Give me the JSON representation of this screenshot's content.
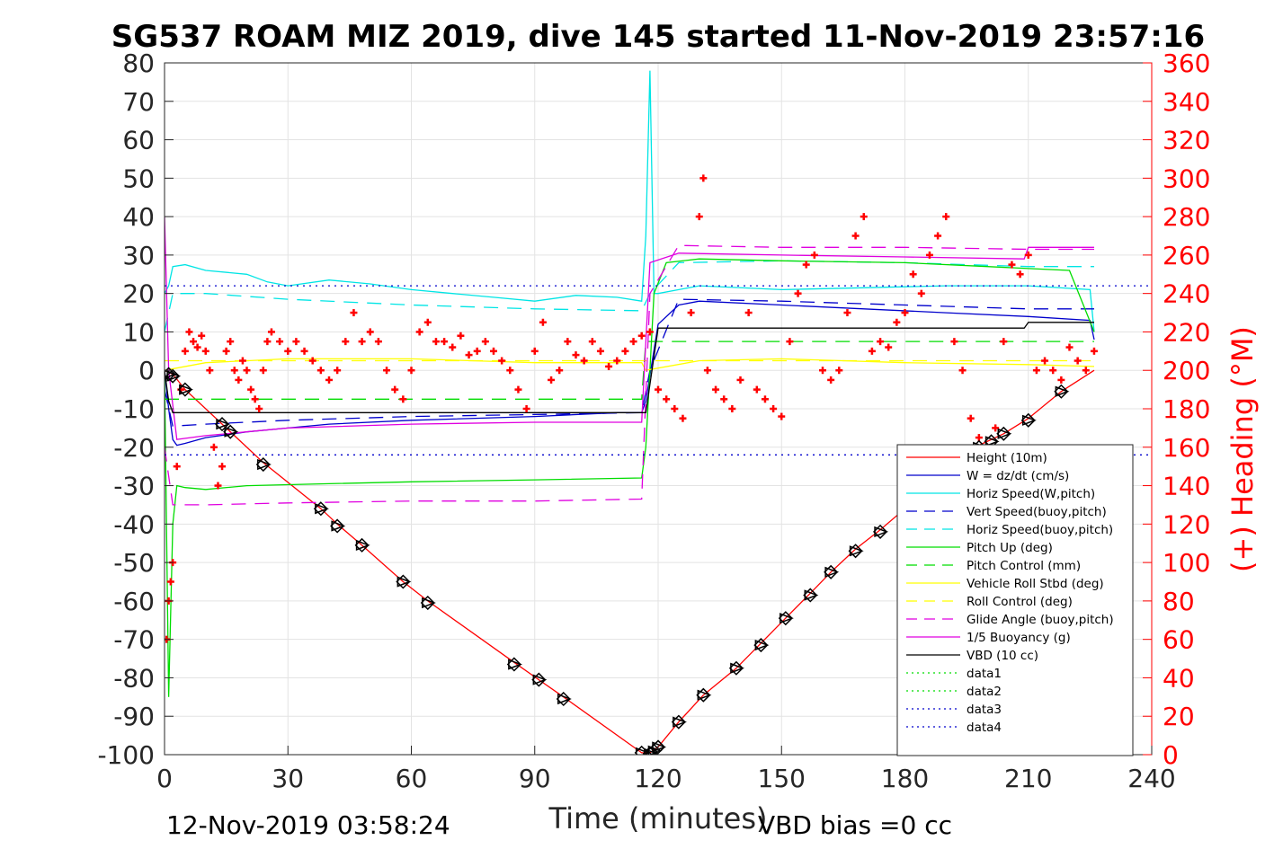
{
  "chart_data": {
    "type": "line",
    "title": "SG537 ROAM MIZ 2019, dive 145 started 11-Nov-2019 23:57:16",
    "xlabel": "Time (minutes)",
    "ylabel": "",
    "ylabel_right": "(+) Heading (°M)",
    "footer_left": "12-Nov-2019 03:58:24",
    "footer_right": "VBD bias =0 cc",
    "xlim": [
      0,
      240
    ],
    "ylim": [
      -100,
      80
    ],
    "ylim_right": [
      0,
      360
    ],
    "x_ticks": [
      "0",
      "30",
      "60",
      "90",
      "120",
      "150",
      "180",
      "210",
      "240"
    ],
    "y_ticks": [
      "80",
      "70",
      "60",
      "50",
      "40",
      "30",
      "20",
      "10",
      "0",
      "-10",
      "-20",
      "-30",
      "-40",
      "-50",
      "-60",
      "-70",
      "-80",
      "-90",
      "-100"
    ],
    "y_ticks_right": [
      "360",
      "340",
      "320",
      "300",
      "280",
      "260",
      "240",
      "220",
      "200",
      "180",
      "160",
      "140",
      "120",
      "100",
      "80",
      "60",
      "40",
      "20",
      "0"
    ],
    "grid": true,
    "legend_position": "lower-right",
    "colors": {
      "red": "#ff0000",
      "blue": "#0000cc",
      "cyan": "#00e5e5",
      "green": "#00dd00",
      "yellow": "#ffff00",
      "magenta": "#e000e0",
      "black": "#000000",
      "heading": "#ff0000"
    },
    "series": [
      {
        "name": "Height (10m)",
        "color": "#ff0000",
        "style": "solid",
        "x": [
          0,
          1,
          2,
          5,
          14,
          24,
          38,
          42,
          48,
          58,
          64,
          85,
          91,
          97,
          116,
          118,
          120,
          125,
          131,
          139,
          145,
          151,
          157,
          162,
          168,
          174,
          180,
          186,
          192,
          198,
          204,
          210,
          218,
          226
        ],
        "y": [
          0,
          -0.5,
          -1,
          -5,
          -14,
          -24,
          -36,
          -40,
          -45.5,
          -55,
          -60,
          -76,
          -80.5,
          -85,
          -99.5,
          -99.5,
          -98,
          -91.5,
          -84.5,
          -77.5,
          -71,
          -64.5,
          -58,
          -52.5,
          -46.5,
          -41.5,
          -36,
          -30,
          -25,
          -19.5,
          -16.5,
          -12.5,
          -5.5,
          0
        ]
      },
      {
        "name": "W = dz/dt (cm/s)",
        "color": "#0000cc",
        "style": "solid",
        "x": [
          0,
          1,
          2,
          3,
          5,
          10,
          20,
          30,
          40,
          60,
          90,
          110,
          116,
          117,
          120,
          125,
          130,
          150,
          170,
          190,
          210,
          225,
          226
        ],
        "y": [
          0,
          -10,
          -18,
          -19.5,
          -19,
          -17.5,
          -16,
          -15,
          -14,
          -13,
          -12,
          -11,
          -11,
          -8,
          12,
          17,
          18,
          17,
          16,
          15,
          14,
          13,
          8
        ]
      },
      {
        "name": "Horiz Speed(W,pitch)",
        "color": "#00e5e5",
        "style": "solid",
        "x": [
          0,
          1,
          2,
          5,
          10,
          20,
          25,
          30,
          40,
          50,
          60,
          70,
          80,
          90,
          100,
          110,
          116,
          117,
          118,
          119,
          120,
          130,
          150,
          170,
          190,
          210,
          225,
          226
        ],
        "y": [
          20,
          22,
          27,
          27.5,
          26,
          25,
          23,
          22,
          23.5,
          22.5,
          21,
          20,
          19,
          18,
          19.5,
          19,
          18,
          35,
          78,
          20,
          20,
          22,
          21,
          21.5,
          22,
          22,
          21,
          10
        ]
      },
      {
        "name": "Vert Speed(buoy,pitch)",
        "color": "#0000cc",
        "style": "dash",
        "x": [
          0,
          2,
          10,
          30,
          60,
          90,
          116,
          118,
          125,
          150,
          180,
          210,
          226
        ],
        "y": [
          -5,
          -14.5,
          -14,
          -13,
          -12,
          -11.5,
          -11,
          0,
          18.5,
          18,
          17,
          16,
          16
        ]
      },
      {
        "name": "Horiz Speed(buoy,pitch)",
        "color": "#00e5e5",
        "style": "dash",
        "x": [
          0,
          2,
          10,
          30,
          60,
          90,
          116,
          118,
          125,
          150,
          180,
          210,
          226
        ],
        "y": [
          10,
          20,
          20,
          18.5,
          17,
          16,
          15.5,
          20,
          28,
          28.5,
          28,
          27,
          27
        ]
      },
      {
        "name": "Pitch Up (deg)",
        "color": "#00dd00",
        "style": "solid",
        "x": [
          0,
          1,
          2,
          3,
          5,
          10,
          20,
          40,
          60,
          90,
          116,
          117,
          119,
          122,
          130,
          150,
          180,
          200,
          210,
          220,
          226
        ],
        "y": [
          0,
          -85,
          -40,
          -30,
          -30.5,
          -31,
          -30,
          -29.5,
          -29,
          -28.5,
          -28,
          -20,
          20,
          28,
          29,
          28.5,
          28,
          27,
          26.5,
          26,
          10
        ]
      },
      {
        "name": "Pitch Control (mm)",
        "color": "#00dd00",
        "style": "dash",
        "x": [
          0,
          2,
          116,
          117,
          226
        ],
        "y": [
          -7.5,
          -7.5,
          -7.5,
          7.5,
          7.5
        ]
      },
      {
        "name": "Vehicle Roll Stbd (deg)",
        "color": "#ffff00",
        "style": "solid",
        "x": [
          0,
          10,
          30,
          60,
          90,
          116,
          117,
          130,
          150,
          180,
          210,
          226
        ],
        "y": [
          0,
          2,
          3,
          3,
          2,
          2,
          0,
          2.5,
          3,
          2,
          1.5,
          1
        ]
      },
      {
        "name": "Roll Control (deg)",
        "color": "#ffff00",
        "style": "dash",
        "x": [
          0,
          226
        ],
        "y": [
          2.5,
          2.5
        ]
      },
      {
        "name": "Glide Angle (buoy,pitch)",
        "color": "#e000e0",
        "style": "dash",
        "x": [
          0,
          2,
          10,
          30,
          60,
          90,
          116,
          118,
          125,
          150,
          180,
          210,
          226
        ],
        "y": [
          -20,
          -35,
          -35,
          -34.5,
          -34,
          -34,
          -33.5,
          20,
          32.5,
          32,
          32,
          31.5,
          31.5
        ]
      },
      {
        "name": "1/5 Buoyancy (g)",
        "color": "#e000e0",
        "style": "solid",
        "x": [
          0,
          1,
          3,
          10,
          30,
          60,
          90,
          116,
          118,
          125,
          150,
          180,
          209,
          210,
          226
        ],
        "y": [
          40,
          0,
          -18,
          -17,
          -15,
          -14,
          -13.5,
          -13.5,
          28,
          30.5,
          30,
          29.5,
          29,
          32,
          32
        ]
      },
      {
        "name": "VBD (10 cc)",
        "color": "#000000",
        "style": "solid",
        "x": [
          0,
          1,
          2,
          116,
          117,
          120,
          209,
          210,
          226
        ],
        "y": [
          0,
          -8,
          -11,
          -11,
          -11,
          11,
          11,
          12.5,
          12.5
        ]
      },
      {
        "name": "data1",
        "color": "#00dd00",
        "style": "dot",
        "x": [],
        "y": []
      },
      {
        "name": "data2",
        "color": "#00dd00",
        "style": "dot",
        "x": [],
        "y": []
      },
      {
        "name": "data3",
        "color": "#0000cc",
        "style": "dot",
        "x": [
          0,
          240
        ],
        "y": [
          22,
          22
        ]
      },
      {
        "name": "data4",
        "color": "#0000cc",
        "style": "dot",
        "x": [
          0,
          240
        ],
        "y": [
          -22,
          -22
        ]
      }
    ],
    "heading": {
      "axis": "right",
      "marker": "+",
      "color": "#ff0000",
      "x": [
        0.5,
        1,
        1.5,
        2,
        3,
        4,
        5,
        6,
        7,
        8,
        9,
        10,
        11,
        12,
        13,
        14,
        15,
        16,
        17,
        18,
        19,
        20,
        21,
        22,
        23,
        24,
        25,
        26,
        28,
        30,
        32,
        34,
        36,
        38,
        40,
        42,
        44,
        46,
        48,
        50,
        52,
        54,
        56,
        58,
        60,
        62,
        64,
        66,
        68,
        70,
        72,
        74,
        76,
        78,
        80,
        82,
        84,
        86,
        88,
        90,
        92,
        94,
        96,
        98,
        100,
        102,
        104,
        106,
        108,
        110,
        112,
        114,
        116,
        118,
        120,
        122,
        124,
        126,
        128,
        130,
        131,
        132,
        134,
        136,
        138,
        140,
        142,
        144,
        146,
        148,
        150,
        152,
        154,
        156,
        158,
        160,
        162,
        164,
        166,
        168,
        170,
        172,
        174,
        176,
        178,
        180,
        182,
        184,
        186,
        188,
        190,
        192,
        194,
        196,
        198,
        200,
        202,
        204,
        206,
        208,
        210,
        212,
        214,
        216,
        218,
        220,
        222,
        224,
        226
      ],
      "y": [
        60,
        80,
        90,
        100,
        150,
        190,
        210,
        220,
        215,
        212,
        218,
        210,
        200,
        160,
        140,
        150,
        210,
        215,
        200,
        195,
        205,
        200,
        190,
        185,
        180,
        200,
        215,
        220,
        215,
        210,
        215,
        210,
        205,
        200,
        195,
        200,
        215,
        230,
        215,
        220,
        215,
        200,
        190,
        185,
        200,
        220,
        225,
        215,
        215,
        212,
        218,
        208,
        210,
        215,
        210,
        205,
        200,
        190,
        180,
        210,
        225,
        195,
        200,
        215,
        208,
        205,
        215,
        210,
        202,
        205,
        210,
        215,
        218,
        220,
        190,
        185,
        180,
        175,
        230,
        280,
        300,
        200,
        190,
        185,
        180,
        195,
        230,
        190,
        185,
        180,
        176,
        215,
        240,
        255,
        260,
        200,
        195,
        200,
        230,
        270,
        280,
        210,
        215,
        212,
        225,
        230,
        250,
        240,
        260,
        270,
        280,
        215,
        200,
        175,
        165,
        160,
        170,
        215,
        255,
        250,
        260,
        200,
        205,
        200,
        195,
        212,
        205,
        200,
        210
      ]
    },
    "markers": {
      "color": "#000000",
      "x": [
        1,
        2,
        5,
        14,
        16,
        24,
        38,
        42,
        48,
        58,
        64,
        85,
        91,
        97,
        116,
        118,
        119,
        120,
        125,
        131,
        139,
        145,
        151,
        157,
        162,
        168,
        174,
        180,
        186,
        192,
        198,
        201,
        204,
        210,
        218
      ],
      "y": [
        -1,
        -1.5,
        -5,
        -14,
        -16,
        -24.5,
        -36,
        -40.5,
        -45.5,
        -55,
        -60.5,
        -76.5,
        -80.5,
        -85.5,
        -99.5,
        -99.7,
        -99,
        -98,
        -91.5,
        -84.5,
        -77.5,
        -71.5,
        -64.5,
        -58.5,
        -52.5,
        -47,
        -42,
        -36.5,
        -30.5,
        -25,
        -20,
        -18.5,
        -16.5,
        -13,
        -5.5
      ]
    }
  }
}
